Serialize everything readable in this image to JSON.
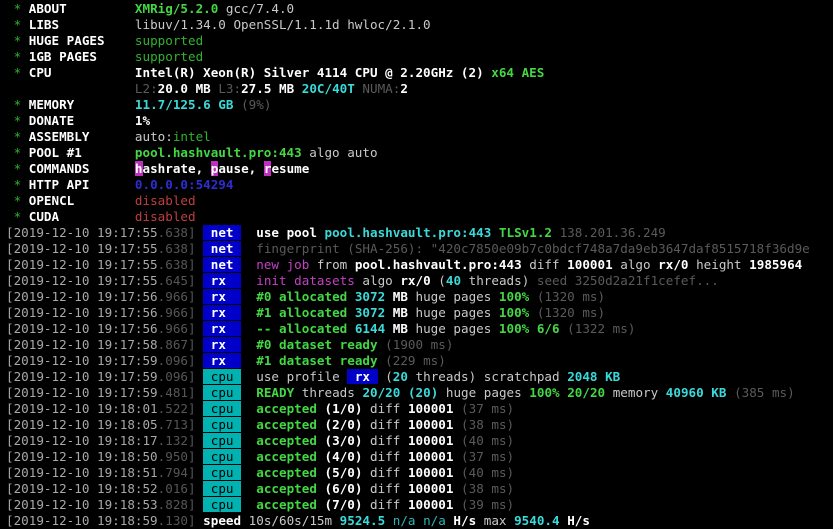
{
  "terminal": {
    "app": "XMRig miner console",
    "colors": {
      "background": "#000000",
      "green": "#2fb32f",
      "green_bold": "#43d843",
      "cyan": "#3adada",
      "magenta": "#c341c3",
      "red": "#bc3f3f",
      "blue_tag_bg": "#0000c8",
      "cyan_tag_bg": "#00b2b2",
      "dim": "#5a5a5a"
    },
    "info_lines": [
      {
        "star": "*",
        "label": "ABOUT",
        "segments": [
          [
            "gb",
            "XMRig/5.2.0"
          ],
          [
            "w",
            " gcc/7.4.0"
          ]
        ]
      },
      {
        "star": "*",
        "label": "LIBS",
        "segments": [
          [
            "w",
            "libuv/1.34.0 OpenSSL/1.1.1d hwloc/2.1.0"
          ]
        ]
      },
      {
        "star": "*",
        "label": "HUGE PAGES",
        "segments": [
          [
            "g",
            "supported"
          ]
        ]
      },
      {
        "star": "*",
        "label": "1GB PAGES",
        "segments": [
          [
            "g",
            "supported"
          ]
        ]
      },
      {
        "star": "*",
        "label": "CPU",
        "segments": [
          [
            "wb",
            "Intel(R) Xeon(R) Silver 4114 CPU @ 2.20GHz (2) "
          ],
          [
            "gb",
            "x64 AES"
          ]
        ]
      },
      {
        "star": "",
        "label": "",
        "segments": [
          [
            "d",
            "L2:"
          ],
          [
            "wb",
            "20.0 MB"
          ],
          [
            "d",
            " L3:"
          ],
          [
            "wb",
            "27.5 MB"
          ],
          [
            "cb",
            " 20C/40T"
          ],
          [
            "d",
            " NUMA:"
          ],
          [
            "wb",
            "2"
          ]
        ]
      },
      {
        "star": "*",
        "label": "MEMORY",
        "segments": [
          [
            "cb",
            "11.7/125.6 GB"
          ],
          [
            "d",
            " (9%)"
          ]
        ]
      },
      {
        "star": "*",
        "label": "DONATE",
        "segments": [
          [
            "wb",
            "1%"
          ]
        ]
      },
      {
        "star": "*",
        "label": "ASSEMBLY",
        "segments": [
          [
            "w",
            "auto:"
          ],
          [
            "g",
            "intel"
          ]
        ]
      },
      {
        "star": "*",
        "label": "POOL #1",
        "segments": [
          [
            "gb",
            "pool.hashvault.pro:443"
          ],
          [
            "w",
            " algo auto"
          ]
        ]
      },
      {
        "star": "*",
        "label": "COMMANDS",
        "segments": [
          [
            "hk",
            "h"
          ],
          [
            "wb",
            "ashrate, "
          ],
          [
            "hk",
            "p"
          ],
          [
            "wb",
            "ause, "
          ],
          [
            "hk",
            "r"
          ],
          [
            "wb",
            "esume"
          ]
        ]
      },
      {
        "star": "*",
        "label": "HTTP API",
        "segments": [
          [
            "b",
            "0.0.0.0:54294"
          ]
        ]
      },
      {
        "star": "*",
        "label": "OPENCL",
        "segments": [
          [
            "r",
            "disabled"
          ]
        ]
      },
      {
        "star": "*",
        "label": "CUDA",
        "segments": [
          [
            "r",
            "disabled"
          ]
        ]
      }
    ],
    "log_lines": [
      {
        "ts": "[2019-12-10 19:17:55",
        "ms": ".638]",
        "tag": {
          "text": " net ",
          "style": "blue"
        },
        "segments": [
          [
            "wb",
            "use pool "
          ],
          [
            "cb",
            "pool.hashvault.pro:443 "
          ],
          [
            "gb",
            "TLSv1.2 "
          ],
          [
            "d",
            "138.201.36.249"
          ]
        ]
      },
      {
        "ts": "[2019-12-10 19:17:55",
        "ms": ".638]",
        "tag": {
          "text": " net ",
          "style": "blue"
        },
        "segments": [
          [
            "d",
            "fingerprint (SHA-256): \"420c7850e09b7c0bdcf748a7da9eb3647daf8515718f36d9e"
          ]
        ]
      },
      {
        "ts": "[2019-12-10 19:17:55",
        "ms": ".638]",
        "tag": {
          "text": " net ",
          "style": "blue"
        },
        "segments": [
          [
            "m",
            "new job"
          ],
          [
            "w",
            " from "
          ],
          [
            "wb",
            "pool.hashvault.pro:443"
          ],
          [
            "w",
            " diff "
          ],
          [
            "wb",
            "100001"
          ],
          [
            "w",
            " algo "
          ],
          [
            "wb",
            "rx/0"
          ],
          [
            "w",
            " height "
          ],
          [
            "wb",
            "1985964"
          ]
        ]
      },
      {
        "ts": "[2019-12-10 19:17:55",
        "ms": ".645]",
        "tag": {
          "text": " rx  ",
          "style": "blue"
        },
        "segments": [
          [
            "m",
            "init datasets"
          ],
          [
            "w",
            " algo "
          ],
          [
            "wb",
            "rx/0"
          ],
          [
            "w",
            " ("
          ],
          [
            "cb",
            "40"
          ],
          [
            "w",
            " threads) "
          ],
          [
            "d",
            "seed 3250d2a21f1cefef..."
          ]
        ]
      },
      {
        "ts": "[2019-12-10 19:17:56",
        "ms": ".966]",
        "tag": {
          "text": " rx  ",
          "style": "blue"
        },
        "segments": [
          [
            "gb",
            "#0 allocated "
          ],
          [
            "cb",
            "3072 "
          ],
          [
            "wb",
            "MB "
          ],
          [
            "w",
            "huge pages "
          ],
          [
            "gb",
            "100% "
          ],
          [
            "d",
            "(1320 ms)"
          ]
        ]
      },
      {
        "ts": "[2019-12-10 19:17:56",
        "ms": ".966]",
        "tag": {
          "text": " rx  ",
          "style": "blue"
        },
        "segments": [
          [
            "gb",
            "#1 allocated "
          ],
          [
            "cb",
            "3072 "
          ],
          [
            "wb",
            "MB "
          ],
          [
            "w",
            "huge pages "
          ],
          [
            "gb",
            "100% "
          ],
          [
            "d",
            "(1320 ms)"
          ]
        ]
      },
      {
        "ts": "[2019-12-10 19:17:56",
        "ms": ".966]",
        "tag": {
          "text": " rx  ",
          "style": "blue"
        },
        "segments": [
          [
            "gb",
            "-- allocated "
          ],
          [
            "cb",
            "6144 "
          ],
          [
            "wb",
            "MB "
          ],
          [
            "w",
            "huge pages "
          ],
          [
            "gb",
            "100% 6/6 "
          ],
          [
            "d",
            "(1322 ms)"
          ]
        ]
      },
      {
        "ts": "[2019-12-10 19:17:58",
        "ms": ".867]",
        "tag": {
          "text": " rx  ",
          "style": "blue"
        },
        "segments": [
          [
            "gb",
            "#0 dataset ready "
          ],
          [
            "d",
            "(1900 ms)"
          ]
        ]
      },
      {
        "ts": "[2019-12-10 19:17:59",
        "ms": ".096]",
        "tag": {
          "text": " rx  ",
          "style": "blue"
        },
        "segments": [
          [
            "gb",
            "#1 dataset ready "
          ],
          [
            "d",
            "(229 ms)"
          ]
        ]
      },
      {
        "ts": "[2019-12-10 19:17:59",
        "ms": ".096]",
        "tag": {
          "text": " cpu ",
          "style": "cyan"
        },
        "segments": [
          [
            "w",
            "use profile "
          ],
          [
            "rxbox",
            " rx "
          ],
          [
            "w",
            " ("
          ],
          [
            "cb",
            "20"
          ],
          [
            "w",
            " threads) scratchpad "
          ],
          [
            "cb",
            "2048 KB"
          ]
        ]
      },
      {
        "ts": "[2019-12-10 19:17:59",
        "ms": ".481]",
        "tag": {
          "text": " cpu ",
          "style": "cyan"
        },
        "segments": [
          [
            "gb",
            "READY"
          ],
          [
            "w",
            " threads "
          ],
          [
            "cb",
            "20/20"
          ],
          [
            "w",
            " "
          ],
          [
            "cb",
            "(20)"
          ],
          [
            "w",
            " huge pages "
          ],
          [
            "gb",
            "100% 20/20"
          ],
          [
            "w",
            " memory "
          ],
          [
            "cb",
            "40960 KB"
          ],
          [
            "w",
            " "
          ],
          [
            "d",
            "(385 ms)"
          ]
        ]
      },
      {
        "ts": "[2019-12-10 19:18:01",
        "ms": ".522]",
        "tag": {
          "text": " cpu ",
          "style": "cyan"
        },
        "segments": [
          [
            "gb",
            "accepted"
          ],
          [
            "w",
            " "
          ],
          [
            "wb",
            "(1/0)"
          ],
          [
            "w",
            " diff "
          ],
          [
            "wb",
            "100001"
          ],
          [
            "w",
            " "
          ],
          [
            "d",
            "(37 ms)"
          ]
        ]
      },
      {
        "ts": "[2019-12-10 19:18:05",
        "ms": ".713]",
        "tag": {
          "text": " cpu ",
          "style": "cyan"
        },
        "segments": [
          [
            "gb",
            "accepted"
          ],
          [
            "w",
            " "
          ],
          [
            "wb",
            "(2/0)"
          ],
          [
            "w",
            " diff "
          ],
          [
            "wb",
            "100001"
          ],
          [
            "w",
            " "
          ],
          [
            "d",
            "(38 ms)"
          ]
        ]
      },
      {
        "ts": "[2019-12-10 19:18:17",
        "ms": ".132]",
        "tag": {
          "text": " cpu ",
          "style": "cyan"
        },
        "segments": [
          [
            "gb",
            "accepted"
          ],
          [
            "w",
            " "
          ],
          [
            "wb",
            "(3/0)"
          ],
          [
            "w",
            " diff "
          ],
          [
            "wb",
            "100001"
          ],
          [
            "w",
            " "
          ],
          [
            "d",
            "(40 ms)"
          ]
        ]
      },
      {
        "ts": "[2019-12-10 19:18:50",
        "ms": ".950]",
        "tag": {
          "text": " cpu ",
          "style": "cyan"
        },
        "segments": [
          [
            "gb",
            "accepted"
          ],
          [
            "w",
            " "
          ],
          [
            "wb",
            "(4/0)"
          ],
          [
            "w",
            " diff "
          ],
          [
            "wb",
            "100001"
          ],
          [
            "w",
            " "
          ],
          [
            "d",
            "(37 ms)"
          ]
        ]
      },
      {
        "ts": "[2019-12-10 19:18:51",
        "ms": ".794]",
        "tag": {
          "text": " cpu ",
          "style": "cyan"
        },
        "segments": [
          [
            "gb",
            "accepted"
          ],
          [
            "w",
            " "
          ],
          [
            "wb",
            "(5/0)"
          ],
          [
            "w",
            " diff "
          ],
          [
            "wb",
            "100001"
          ],
          [
            "w",
            " "
          ],
          [
            "d",
            "(40 ms)"
          ]
        ]
      },
      {
        "ts": "[2019-12-10 19:18:52",
        "ms": ".016]",
        "tag": {
          "text": " cpu ",
          "style": "cyan"
        },
        "segments": [
          [
            "gb",
            "accepted"
          ],
          [
            "w",
            " "
          ],
          [
            "wb",
            "(6/0)"
          ],
          [
            "w",
            " diff "
          ],
          [
            "wb",
            "100001"
          ],
          [
            "w",
            " "
          ],
          [
            "d",
            "(38 ms)"
          ]
        ]
      },
      {
        "ts": "[2019-12-10 19:18:53",
        "ms": ".828]",
        "tag": {
          "text": " cpu ",
          "style": "cyan"
        },
        "segments": [
          [
            "gb",
            "accepted"
          ],
          [
            "w",
            " "
          ],
          [
            "wb",
            "(7/0)"
          ],
          [
            "w",
            " diff "
          ],
          [
            "wb",
            "100001"
          ],
          [
            "w",
            " "
          ],
          [
            "d",
            "(39 ms)"
          ]
        ]
      },
      {
        "ts": "[2019-12-10 19:18:59",
        "ms": ".130]",
        "tag": null,
        "segments": [
          [
            "wb",
            "speed"
          ],
          [
            "w",
            " 10s/60s/15m "
          ],
          [
            "cb",
            "9524.5"
          ],
          [
            "c",
            " n/a n/a "
          ],
          [
            "wb",
            "H/s"
          ],
          [
            "w",
            " max "
          ],
          [
            "cb",
            "9540.4"
          ],
          [
            "w",
            " "
          ],
          [
            "wb",
            "H/s"
          ]
        ]
      }
    ]
  }
}
